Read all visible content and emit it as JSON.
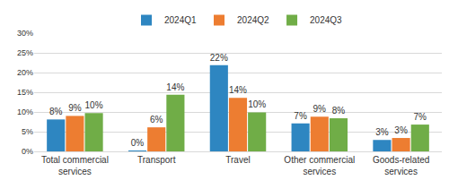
{
  "chart_data": {
    "type": "bar",
    "categories": [
      "Total commercial services",
      "Transport",
      "Travel",
      "Other commercial services",
      "Goods-related services"
    ],
    "series": [
      {
        "name": "2024Q1",
        "color": "#2e86c1",
        "values": [
          8.1,
          0.2,
          21.9,
          7.1,
          2.9
        ],
        "value_labels": [
          "8%",
          "0%",
          "22%",
          "7%",
          "3%"
        ]
      },
      {
        "name": "2024Q2",
        "color": "#ed7d31",
        "values": [
          9.0,
          6.1,
          13.6,
          8.8,
          3.4
        ],
        "value_labels": [
          "9%",
          "6%",
          "14%",
          "9%",
          "3%"
        ]
      },
      {
        "name": "2024Q3",
        "color": "#70ad47",
        "values": [
          9.7,
          14.4,
          9.9,
          8.4,
          6.8
        ],
        "value_labels": [
          "10%",
          "14%",
          "10%",
          "8%",
          "7%"
        ]
      }
    ],
    "ylim": [
      0,
      30
    ],
    "yticks": [
      {
        "value": 0,
        "label": "0%"
      },
      {
        "value": 5,
        "label": "5%"
      },
      {
        "value": 10,
        "label": "10%"
      },
      {
        "value": 15,
        "label": "15%"
      },
      {
        "value": 20,
        "label": "20%"
      },
      {
        "value": 25,
        "label": "25%"
      },
      {
        "value": 30,
        "label": "30%"
      }
    ],
    "grid": true,
    "legend": "top",
    "data_labels": true
  }
}
